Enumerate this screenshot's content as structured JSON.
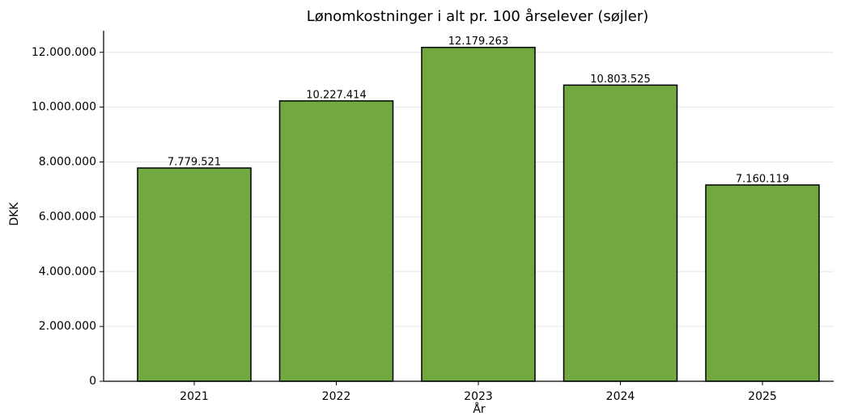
{
  "chart_data": {
    "type": "bar",
    "title": "Lønomkostninger i alt pr. 100 årselever (søjler)",
    "x_label": "År",
    "y_label": "DKK",
    "categories": [
      "2021",
      "2022",
      "2023",
      "2024",
      "2025"
    ],
    "values": [
      7779521,
      10227414,
      12179263,
      10803525,
      7160119
    ],
    "value_labels": [
      "7.779.521",
      "10.227.414",
      "12.179.263",
      "10.803.525",
      "7.160.119"
    ],
    "color": "#71a840",
    "ylim": [
      0,
      12788226
    ],
    "yticks": [
      0,
      {
        "value": 2000000,
        "label": "2.000.000"
      },
      {
        "value": 4000000,
        "label": "4.000.000"
      },
      {
        "value": 6000000,
        "label": "6.000.000"
      },
      {
        "value": 8000000,
        "label": "8.000.000"
      },
      {
        "value": 10000000,
        "label": "10.000.000"
      },
      {
        "value": 12000000,
        "label": "12.000.000"
      }
    ],
    "grid": true
  }
}
